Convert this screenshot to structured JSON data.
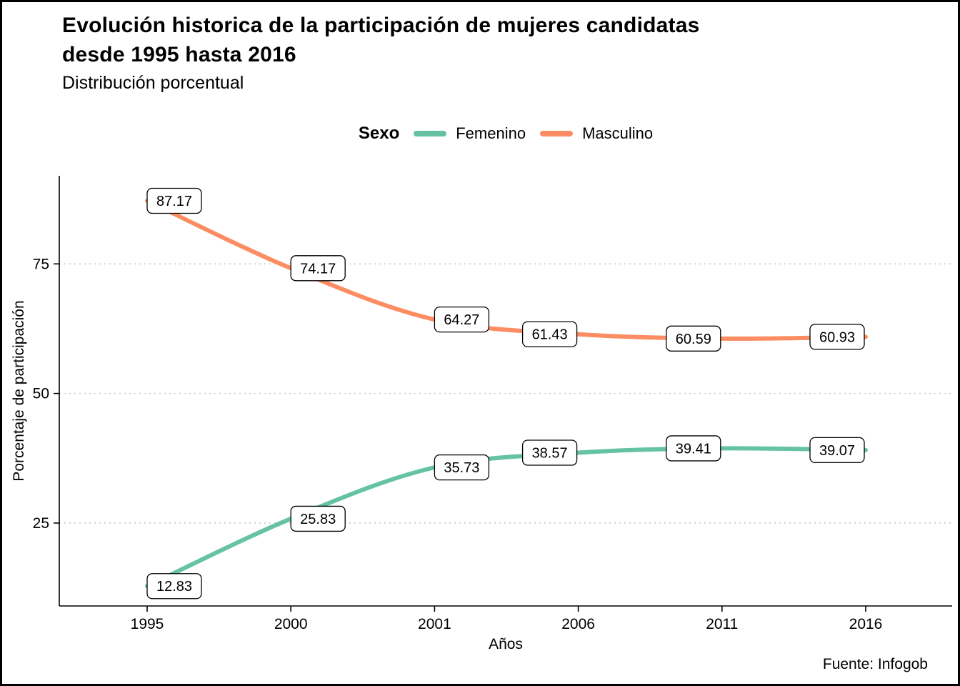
{
  "title_line1": "Evolución historica de la participación de mujeres candidatas",
  "title_line2": "desde 1995 hasta 2016",
  "subtitle": "Distribución porcentual",
  "caption": "Fuente: Infogob",
  "legend": {
    "title": "Sexo",
    "items": [
      {
        "label": "Femenino",
        "color": "#66C2A5"
      },
      {
        "label": "Masculino",
        "color": "#FC8D62"
      }
    ]
  },
  "chart_data": {
    "type": "line",
    "title": "Evolución historica de la participación de mujeres candidatas desde 1995 hasta 2016",
    "subtitle": "Distribución porcentual",
    "categories": [
      "1995",
      "2000",
      "2001",
      "2006",
      "2011",
      "2016"
    ],
    "series": [
      {
        "name": "Femenino",
        "color": "#66C2A5",
        "values": [
          12.83,
          25.83,
          35.73,
          38.57,
          39.41,
          39.07
        ]
      },
      {
        "name": "Masculino",
        "color": "#FC8D62",
        "values": [
          87.17,
          74.17,
          64.27,
          61.43,
          60.59,
          60.93
        ]
      }
    ],
    "xlabel": "Años",
    "ylabel": "Porcentaje de participación",
    "yticks": [
      25,
      50,
      75
    ],
    "ylim": [
      9,
      92
    ],
    "grid": "dotted-horizontal",
    "legend_position": "top",
    "point_labels": true
  }
}
